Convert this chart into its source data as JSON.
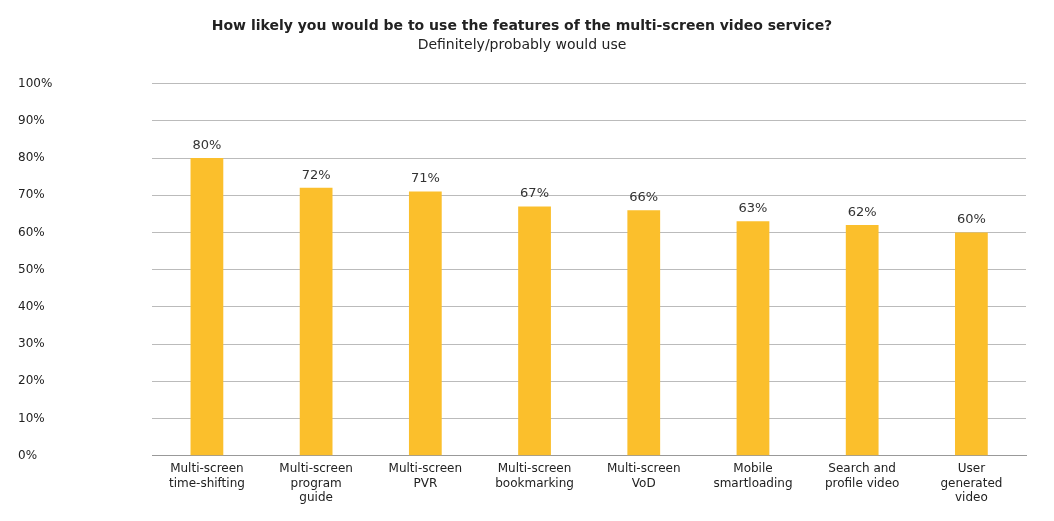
{
  "chart_data": {
    "type": "bar",
    "title": "How likely you would be to use the features of the multi-screen video service?",
    "subtitle": "Definitely/probably would use",
    "categories": [
      "Multi-screen time-shifting",
      "Multi-screen program guide",
      "Multi-screen PVR",
      "Multi-screen bookmarking",
      "Multi-screen VoD",
      "Mobile smartloading",
      "Search and profile video",
      "User generated video"
    ],
    "values": [
      80,
      72,
      71,
      67,
      66,
      63,
      62,
      60
    ],
    "value_labels": [
      "80%",
      "72%",
      "71%",
      "67%",
      "66%",
      "63%",
      "62%",
      "60%"
    ],
    "color": "#fbbf2c",
    "ylim": [
      0,
      100
    ],
    "yticks": [
      {
        "value": 0,
        "label": "0%"
      },
      {
        "value": 10,
        "label": "10%"
      },
      {
        "value": 20,
        "label": "20%"
      },
      {
        "value": 30,
        "label": "30%"
      },
      {
        "value": 40,
        "label": "40%"
      },
      {
        "value": 50,
        "label": "50%"
      },
      {
        "value": 60,
        "label": "60%"
      },
      {
        "value": 70,
        "label": "70%"
      },
      {
        "value": 80,
        "label": "80%"
      },
      {
        "value": 90,
        "label": "90%"
      },
      {
        "value": 100,
        "label": "100%"
      }
    ],
    "grid": "y",
    "legend": false
  }
}
